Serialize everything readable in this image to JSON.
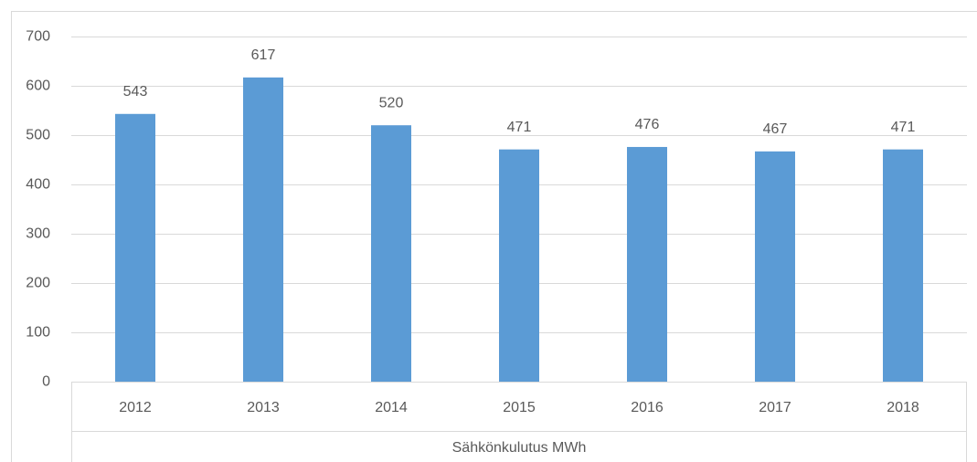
{
  "chart_data": {
    "type": "bar",
    "x_label": "Sähkönkulutus MWh",
    "categories": [
      "2012",
      "2013",
      "2014",
      "2015",
      "2016",
      "2017",
      "2018"
    ],
    "values": [
      543,
      617,
      520,
      471,
      476,
      467,
      471
    ],
    "color": "#5b9bd5",
    "ylim": [
      0,
      700
    ],
    "yticks": [
      0,
      100,
      200,
      300,
      400,
      500,
      600,
      700
    ],
    "grid": true
  }
}
